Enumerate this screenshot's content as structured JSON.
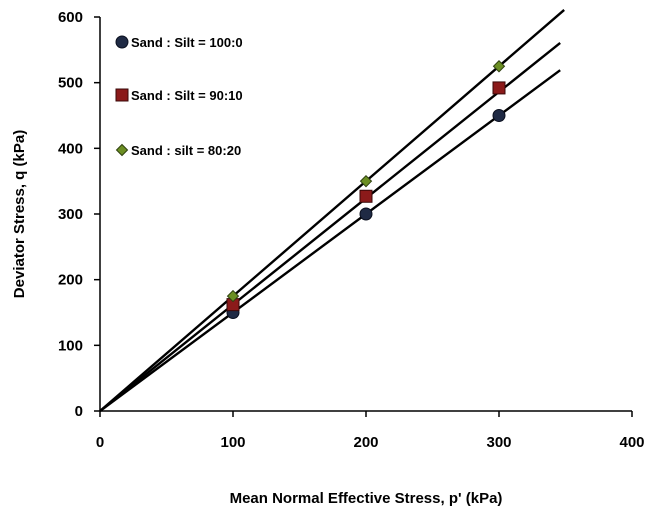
{
  "chart_data": {
    "type": "scatter",
    "title": "",
    "xlabel": "Mean Normal Effective Stress, p' (kPa)",
    "ylabel": "Deviator Stress, q (kPa)",
    "xlim": [
      0,
      400
    ],
    "ylim": [
      0,
      600
    ],
    "xticks": [
      "0",
      "100",
      "200",
      "300",
      "400"
    ],
    "yticks": [
      "0",
      "100",
      "200",
      "300",
      "400",
      "500",
      "600"
    ],
    "grid": false,
    "legend_position": "top-left",
    "series": [
      {
        "name": "Sand : Silt = 100:0",
        "marker": "circle",
        "color": "#1f2a44",
        "x": [
          100,
          200,
          300
        ],
        "y": [
          150,
          300,
          450
        ],
        "fit_slope": 1.5
      },
      {
        "name": "Sand : Silt = 90:10",
        "marker": "square",
        "color": "#8b1a1a",
        "x": [
          100,
          200,
          300
        ],
        "y": [
          162,
          327,
          492
        ],
        "fit_slope": 1.62
      },
      {
        "name": "Sand : silt = 80:20",
        "marker": "diamond",
        "color": "#6b8e23",
        "x": [
          100,
          200,
          300
        ],
        "y": [
          175,
          350,
          525
        ],
        "fit_slope": 1.75
      }
    ]
  }
}
